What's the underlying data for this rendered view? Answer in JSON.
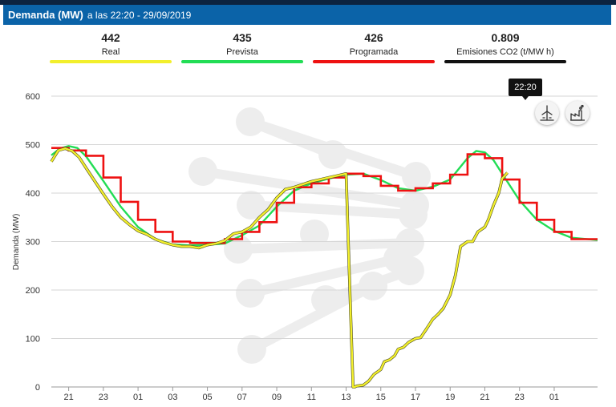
{
  "header": {
    "title": "Demanda (MW)",
    "subtitle": "a las 22:20 - 29/09/2019"
  },
  "kpis": [
    {
      "value": "442",
      "label": "Real",
      "color": "#f2ef2c"
    },
    {
      "value": "435",
      "label": "Prevista",
      "color": "#22dd55"
    },
    {
      "value": "426",
      "label": "Programada",
      "color": "#ee1111"
    },
    {
      "value": "0.809",
      "label": "Emisiones CO2 (t/MW h)",
      "color": "#111111"
    }
  ],
  "tooltip": "22:20",
  "buttons": {
    "wind": "wind-turbine-icon",
    "factory": "factory-icon"
  },
  "chart_data": {
    "type": "line",
    "ylabel": "Demanda (MW)",
    "ylim": [
      0,
      600
    ],
    "yticks": [
      0,
      100,
      200,
      300,
      400,
      500,
      600
    ],
    "x_range_hours": [
      20.0,
      51.5
    ],
    "xtick_hours": [
      21,
      23,
      25,
      27,
      29,
      31,
      33,
      35,
      37,
      39,
      41,
      43,
      45,
      47,
      49
    ],
    "xtick_labels": [
      "21",
      "23",
      "01",
      "03",
      "05",
      "07",
      "09",
      "11",
      "13",
      "15",
      "17",
      "19",
      "21",
      "23",
      "01"
    ],
    "series": [
      {
        "name": "Real",
        "color": "#f2ef2c",
        "x": [
          20,
          20.4,
          20.8,
          21.2,
          21.6,
          22,
          22.5,
          23,
          23.5,
          24,
          24.5,
          25,
          25.5,
          26,
          26.5,
          27,
          27.5,
          28,
          28.5,
          29,
          29.5,
          30,
          30.5,
          31,
          31.5,
          32,
          32.5,
          33,
          33.5,
          34,
          34.5,
          35,
          35.5,
          36,
          36.5,
          37,
          37.2,
          37.4,
          37.5,
          37.6,
          38,
          38.3,
          38.6,
          39,
          39.2,
          39.5,
          39.8,
          40,
          40.3,
          40.6,
          41,
          41.3,
          41.6,
          42,
          42.3,
          42.6,
          43,
          43.3,
          43.6,
          44,
          44.3,
          44.6,
          45,
          45.2,
          45.5,
          45.8,
          46,
          46.3
        ],
        "y": [
          465,
          488,
          492,
          487,
          474,
          452,
          425,
          398,
          372,
          350,
          335,
          322,
          315,
          305,
          298,
          293,
          290,
          290,
          287,
          293,
          296,
          302,
          316,
          320,
          330,
          350,
          366,
          390,
          408,
          412,
          418,
          424,
          428,
          432,
          436,
          440,
          220,
          0,
          0,
          2,
          4,
          12,
          26,
          36,
          52,
          56,
          65,
          78,
          82,
          92,
          100,
          102,
          118,
          140,
          150,
          162,
          190,
          230,
          290,
          300,
          300,
          320,
          330,
          345,
          375,
          400,
          430,
          442
        ]
      },
      {
        "name": "Prevista",
        "color": "#22dd55",
        "x": [
          20,
          20.5,
          21,
          21.5,
          22,
          23,
          24,
          25,
          26,
          27,
          28,
          29,
          30,
          31,
          32,
          33,
          34,
          35,
          36,
          37,
          38,
          39,
          40,
          41,
          42,
          43,
          43.5,
          44,
          44.5,
          45,
          45.5,
          46,
          47,
          48,
          49,
          50,
          51.5
        ],
        "y": [
          478,
          492,
          497,
          493,
          476,
          425,
          372,
          330,
          305,
          294,
          292,
          293,
          296,
          313,
          333,
          372,
          405,
          420,
          430,
          438,
          440,
          427,
          410,
          405,
          413,
          428,
          450,
          472,
          487,
          484,
          468,
          440,
          385,
          345,
          322,
          308,
          303
        ]
      },
      {
        "name": "Programada",
        "color": "#ee1111",
        "x": [
          20,
          21,
          21,
          22,
          22,
          23,
          23,
          24,
          24,
          25,
          25,
          26,
          26,
          27,
          27,
          28,
          28,
          29,
          29,
          30,
          30,
          31,
          31,
          32,
          32,
          33,
          33,
          34,
          34,
          35,
          35,
          36,
          36,
          37,
          37,
          38,
          38,
          39,
          39,
          40,
          40,
          41,
          41,
          42,
          42,
          43,
          43,
          44,
          44,
          45,
          45,
          46,
          46,
          47,
          47,
          48,
          48,
          49,
          49,
          50,
          50,
          51.5
        ],
        "y": [
          493,
          493,
          488,
          488,
          477,
          477,
          432,
          432,
          382,
          382,
          345,
          345,
          320,
          320,
          300,
          300,
          297,
          297,
          297,
          297,
          305,
          305,
          320,
          320,
          340,
          340,
          380,
          380,
          412,
          412,
          420,
          420,
          432,
          432,
          440,
          440,
          435,
          435,
          415,
          415,
          405,
          405,
          410,
          410,
          420,
          420,
          438,
          438,
          480,
          480,
          472,
          472,
          428,
          428,
          380,
          380,
          345,
          345,
          320,
          320,
          305,
          305
        ]
      }
    ]
  }
}
